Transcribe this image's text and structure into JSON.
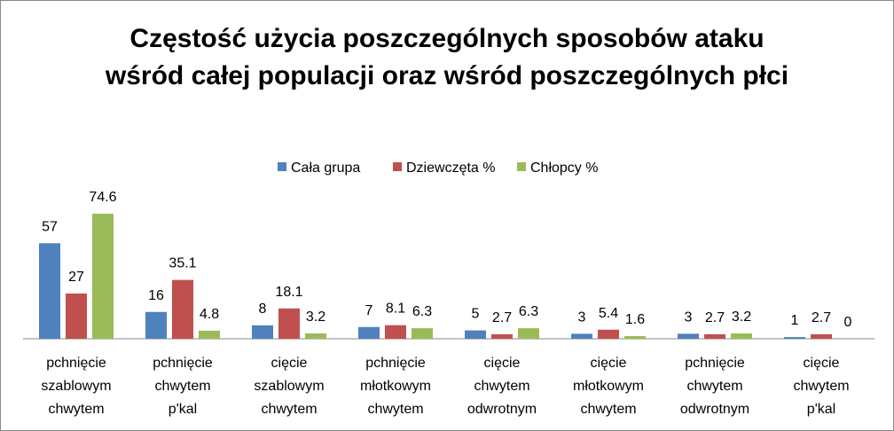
{
  "chart_data": {
    "type": "bar",
    "title": "Częstość użycia poszczególnych sposobów ataku wśród całej populacji oraz wśród poszczególnych płci",
    "categories": [
      "pchnięcie szablowym chwytem",
      "pchnięcie chwytem p'kal",
      "cięcie szablowym chwytem",
      "pchnięcie młotkowym chwytem",
      "cięcie chwytem odwrotnym",
      "cięcie młotkowym chwytem",
      "pchnięcie chwytem odwrotnym",
      "cięcie chwytem p'kal"
    ],
    "series": [
      {
        "name": "Cała grupa",
        "color": "#4f81bd",
        "values": [
          57,
          16,
          8,
          7,
          5,
          3,
          3,
          1
        ]
      },
      {
        "name": "Dziewczęta %",
        "color": "#c0504d",
        "values": [
          27,
          35.1,
          18.1,
          8.1,
          2.7,
          5.4,
          2.7,
          2.7
        ]
      },
      {
        "name": "Chłopcy %",
        "color": "#9bbb59",
        "values": [
          74.6,
          4.8,
          3.2,
          6.3,
          6.3,
          1.6,
          3.2,
          0
        ]
      }
    ],
    "legend": "top"
  }
}
